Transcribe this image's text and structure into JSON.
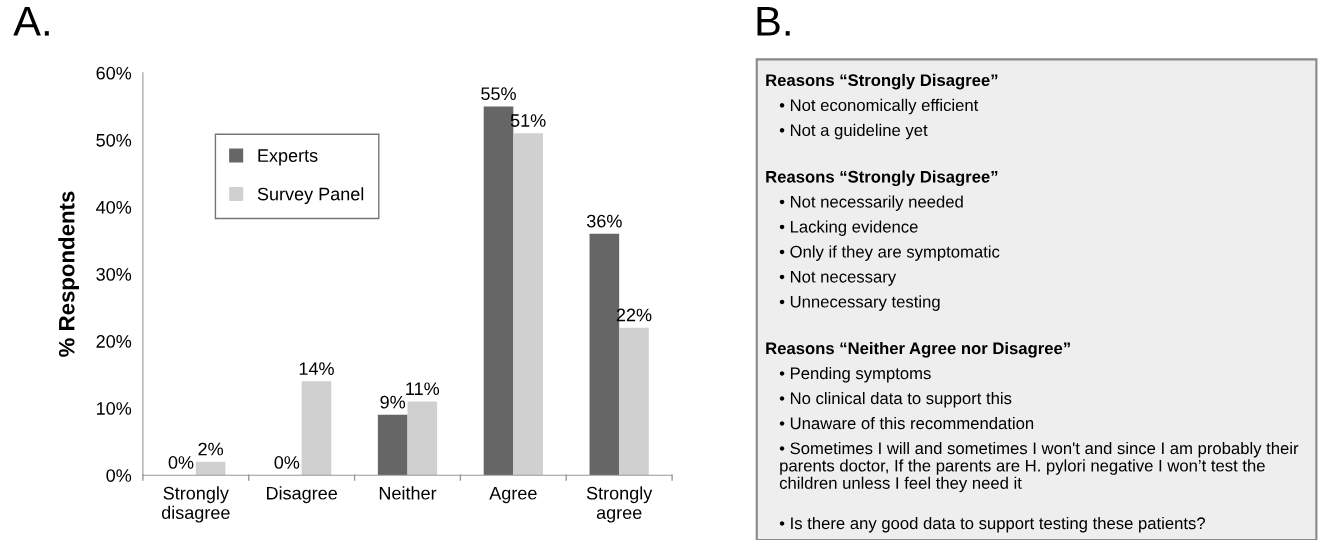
{
  "chart_data": [
    {
      "type": "bar",
      "title": "A.",
      "ylabel": "% Respondents",
      "categories": [
        "Strongly\ndisagree",
        "Disagree",
        "Neither",
        "Agree",
        "Strongly\nagree"
      ],
      "series": [
        {
          "name": "Experts",
          "color": "#666666",
          "values": [
            0,
            0,
            9,
            55,
            36
          ]
        },
        {
          "name": "Survey Panel",
          "color": "#d0d0d0",
          "values": [
            2,
            14,
            11,
            51,
            22
          ]
        }
      ],
      "ylim": [
        0,
        60
      ],
      "yticks": [
        {
          "value": 0,
          "label": "0%"
        },
        {
          "value": 10,
          "label": "10%"
        },
        {
          "value": 20,
          "label": "20%"
        },
        {
          "value": 30,
          "label": "30%"
        },
        {
          "value": 40,
          "label": "40%"
        },
        {
          "value": 50,
          "label": "50%"
        },
        {
          "value": 60,
          "label": "60%"
        }
      ],
      "value_labels": [
        [
          "0%",
          "0%",
          "9%",
          "55%",
          "36%"
        ],
        [
          "2%",
          "14%",
          "11%",
          "51%",
          "22%"
        ]
      ],
      "legend": "top left",
      "grid": false
    },
    {
      "type": "other",
      "title": "B.",
      "annotations": [
        "Reasons “Strongly Disagree”",
        "• Not economically efficient",
        "• Not a guideline yet",
        "Reasons “Strongly Disagree”",
        "• Not necessarily needed",
        "• Lacking evidence",
        "• Only if they are symptomatic",
        "• Not necessary",
        "• Unnecessary testing",
        "Reasons “Neither Agree nor Disagree”",
        "• Pending symptoms",
        "• No clinical data to support this",
        "• Unaware of this recommendation",
        "• Sometimes I will and sometimes I won't and since I am probably their parents doctor, If the parents are H. pylori negative I won’t test the children unless I feel they need it",
        "• Is there any good data to support testing these patients?"
      ]
    }
  ]
}
